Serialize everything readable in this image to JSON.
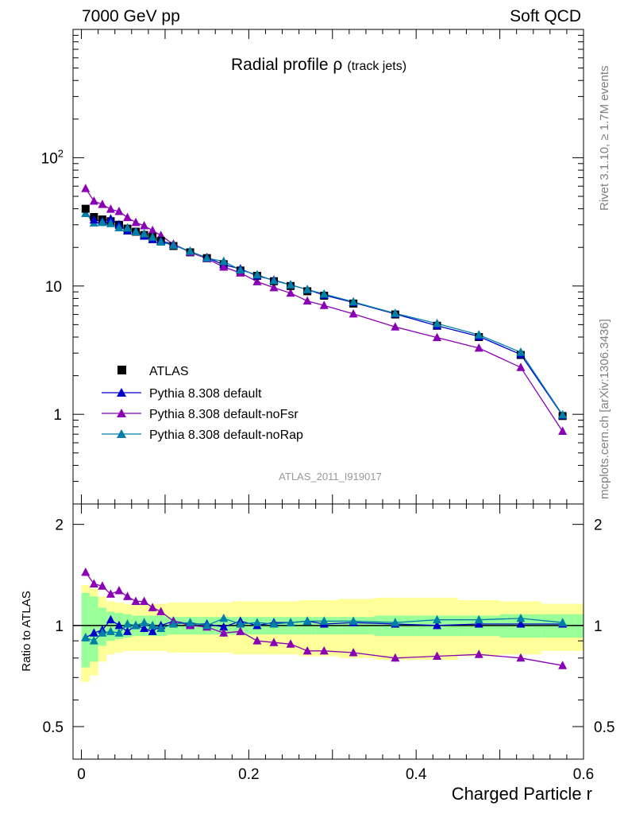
{
  "header": {
    "left": "7000 GeV pp",
    "right": "Soft QCD"
  },
  "side_labels": {
    "rivet": "Rivet 3.1.10, ≥ 1.7M events",
    "mcplots": "mcplots.cern.ch [arXiv:1306.3436]"
  },
  "chart_data": {
    "type": "line",
    "title": "Radial profile ρ",
    "title_suffix": "(track jets)",
    "analysis_tag": "ATLAS_2011_I919017",
    "xlabel": "Charged Particle r",
    "ylabel_ratio": "Ratio to ATLAS",
    "xlim": [
      -0.01,
      0.6
    ],
    "ylim_main": [
      0.2,
      1000
    ],
    "yscale_main": "log",
    "ylim_ratio": [
      0.4,
      2.3
    ],
    "yscale_ratio": "log",
    "x_ticks": [
      "0",
      "0.2",
      "0.4",
      "0.6"
    ],
    "y_ticks_main": [
      "1",
      "10",
      "10^2"
    ],
    "y_ticks_ratio": [
      "0.5",
      "1",
      "2"
    ],
    "legend_position": "lower-left",
    "colors": {
      "atlas": "#000000",
      "default": "#0000cc",
      "noFsr": "#8a00b4",
      "noRap": "#0080a8",
      "band_inner": "#99ff99",
      "band_outer": "#ffff99"
    },
    "x": [
      0.005,
      0.015,
      0.025,
      0.035,
      0.045,
      0.055,
      0.065,
      0.075,
      0.085,
      0.095,
      0.11,
      0.13,
      0.15,
      0.17,
      0.19,
      0.21,
      0.23,
      0.25,
      0.27,
      0.29,
      0.325,
      0.375,
      0.425,
      0.475,
      0.525,
      0.575
    ],
    "atlas": {
      "name": "ATLAS",
      "values": [
        40.0,
        34.5,
        33.0,
        32.0,
        30.0,
        28.0,
        26.5,
        25.0,
        24.0,
        22.5,
        20.5,
        18.3,
        16.5,
        14.8,
        13.2,
        12.0,
        10.9,
        10.0,
        9.1,
        8.4,
        7.3,
        6.0,
        4.9,
        4.0,
        2.9,
        0.97
      ],
      "stat_rel": [
        0.25,
        0.22,
        0.13,
        0.1,
        0.09,
        0.08,
        0.07,
        0.07,
        0.07,
        0.07,
        0.06,
        0.06,
        0.06,
        0.06,
        0.06,
        0.06,
        0.06,
        0.06,
        0.06,
        0.06,
        0.06,
        0.07,
        0.07,
        0.07,
        0.08,
        0.08
      ],
      "total_rel": [
        0.32,
        0.29,
        0.22,
        0.18,
        0.17,
        0.16,
        0.16,
        0.16,
        0.16,
        0.16,
        0.17,
        0.17,
        0.17,
        0.17,
        0.18,
        0.18,
        0.18,
        0.18,
        0.19,
        0.19,
        0.2,
        0.21,
        0.21,
        0.19,
        0.18,
        0.16
      ]
    },
    "series": [
      {
        "name": "Pythia 8.308 default",
        "ratio": [
          0.92,
          0.95,
          0.97,
          1.04,
          1.0,
          0.96,
          1.0,
          0.98,
          0.96,
          1.0,
          1.03,
          1.01,
          1.01,
          0.99,
          1.03,
          1.0,
          1.02,
          1.02,
          1.03,
          1.01,
          1.02,
          1.01,
          1.0,
          1.01,
          1.01,
          1.01
        ]
      },
      {
        "name": "Pythia 8.308 default-noFsr",
        "ratio": [
          1.44,
          1.33,
          1.31,
          1.24,
          1.27,
          1.22,
          1.18,
          1.18,
          1.13,
          1.1,
          1.03,
          1.0,
          0.99,
          0.95,
          0.96,
          0.9,
          0.89,
          0.88,
          0.84,
          0.84,
          0.83,
          0.8,
          0.81,
          0.82,
          0.8,
          0.76
        ]
      },
      {
        "name": "Pythia 8.308 default-noRap",
        "ratio": [
          0.92,
          0.9,
          0.95,
          0.96,
          0.95,
          1.01,
          1.0,
          1.02,
          1.0,
          0.98,
          1.01,
          1.02,
          1.0,
          1.05,
          1.01,
          1.02,
          1.01,
          1.02,
          1.03,
          1.03,
          1.03,
          1.02,
          1.04,
          1.04,
          1.05,
          1.02
        ]
      }
    ]
  }
}
